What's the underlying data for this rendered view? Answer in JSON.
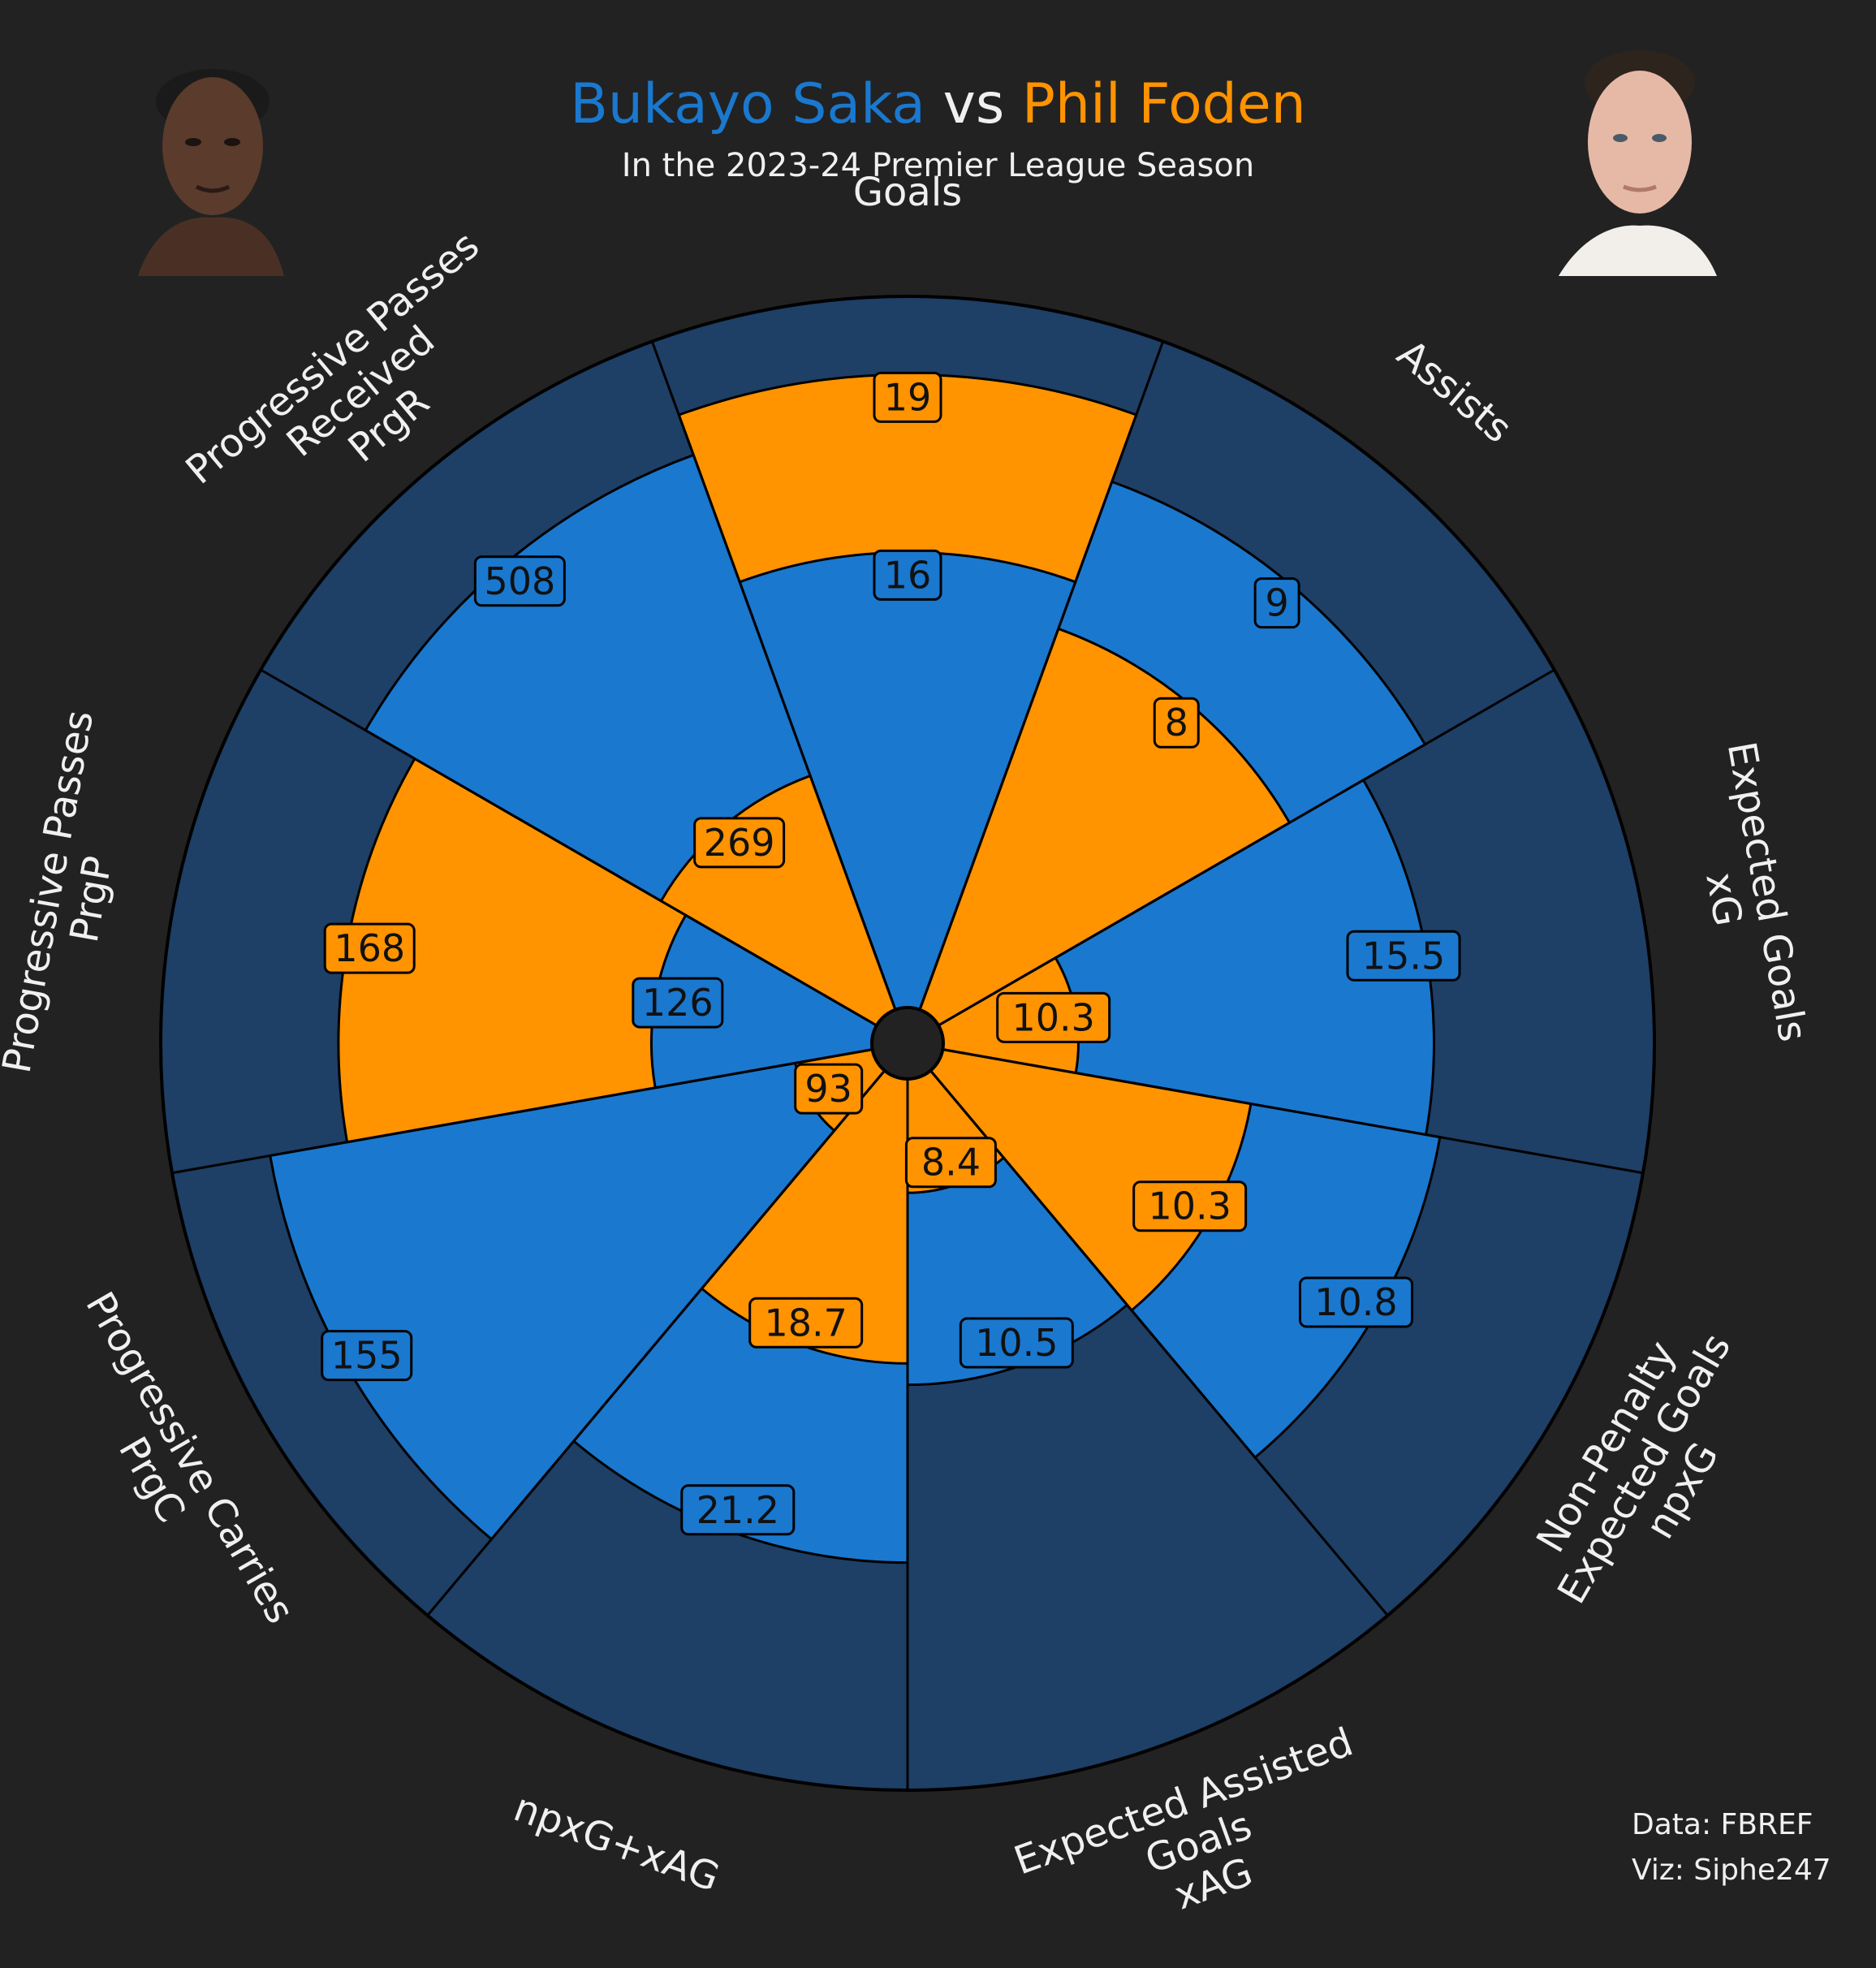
{
  "header": {
    "player1": "Bukayo Saka",
    "vs": "vs",
    "player2": "Phil Foden",
    "subtitle": "In the 2023-24 Premier League Season"
  },
  "credits": {
    "data": "Data: FBREF",
    "viz": "Viz: Siphe247"
  },
  "colors": {
    "background": "#222222",
    "slice_background": "#1e3f66",
    "player1": "#1a78cf",
    "player2": "#ff9300",
    "edge": "#000000",
    "text": "#f0f0f0"
  },
  "chart_data": {
    "type": "pizza",
    "series": [
      {
        "name": "Bukayo Saka",
        "color": "#1a78cf"
      },
      {
        "name": "Phil Foden",
        "color": "#ff9300"
      }
    ],
    "parameters": [
      {
        "label": [
          "Goals"
        ],
        "p1": "16",
        "p2": "19",
        "p1_pct": 64,
        "p2_pct": 89
      },
      {
        "label": [
          "Assists"
        ],
        "p1": "9",
        "p2": "8",
        "p1_pct": 79,
        "p2_pct": 57
      },
      {
        "label": [
          "Expected Goals",
          "xG"
        ],
        "p1": "15.5",
        "p2": "10.3",
        "p1_pct": 69,
        "p2_pct": 19
      },
      {
        "label": [
          "Non-Penalty",
          "Expected Goals",
          "npxG"
        ],
        "p1": "10.8",
        "p2": "10.3",
        "p1_pct": 71,
        "p2_pct": 44
      },
      {
        "label": [
          "Expected Assisted",
          "Goals",
          "xAG"
        ],
        "p1": "10.5",
        "p2": "8.4",
        "p1_pct": 43,
        "p2_pct": 16
      },
      {
        "label": [
          "npxG+xAG"
        ],
        "p1": "21.2",
        "p2": "18.7",
        "p1_pct": 68,
        "p2_pct": 40
      },
      {
        "label": [
          "Progressive Carries",
          "PrgC"
        ],
        "p1": "155",
        "p2": "93",
        "p1_pct": 86,
        "p2_pct": 11
      },
      {
        "label": [
          "Progressive Passes",
          "PrgP"
        ],
        "p1": "126",
        "p2": "168",
        "p1_pct": 31,
        "p2_pct": 75
      },
      {
        "label": [
          "Progressive Passes",
          "Received",
          "PrgR"
        ],
        "p1": "508",
        "p2": "269",
        "p1_pct": 83,
        "p2_pct": 35
      }
    ]
  }
}
